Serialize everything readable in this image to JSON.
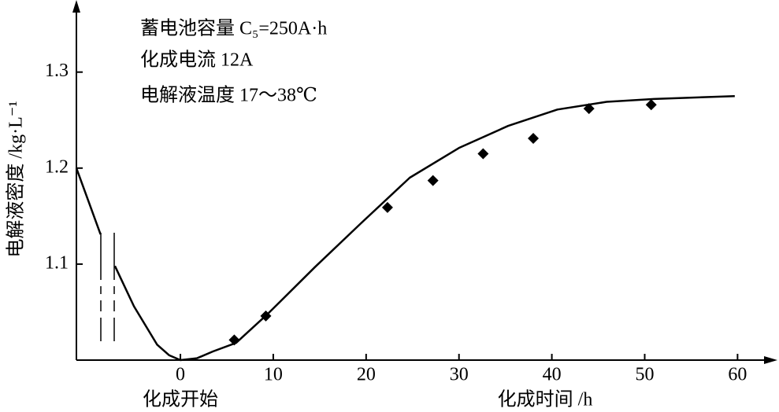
{
  "chart_data": {
    "type": "line",
    "annotations": [
      "蓄电池容量 C₅=250A·h",
      "化成电流 12A",
      "电解液温度 17～38℃"
    ],
    "start_label": "化成开始",
    "xlabel": "化成时间 /h",
    "ylabel": "电解液密度 /kg·L⁻¹",
    "xlim": [
      -11.2,
      63.7
    ],
    "ylim": [
      1.0,
      1.371
    ],
    "xticks": [
      0,
      10,
      20,
      30,
      40,
      50,
      60
    ],
    "yticks": [
      1.1,
      1.2,
      1.3
    ],
    "series": [
      {
        "color": "#000000",
        "marker": "none",
        "x": [
          -11.2,
          -8.6,
          -8.0,
          -7.05,
          -5.0,
          -2.5,
          -1.2,
          0,
          1.8,
          3.5,
          6.0,
          9.5,
          14.5,
          19.5,
          24.7,
          30.0,
          35.3,
          40.6,
          45.9,
          51.0,
          59.7
        ],
        "values": [
          1.2,
          1.131,
          null,
          1.098,
          1.056,
          1.016,
          1.005,
          1.0,
          1.002,
          1.009,
          1.018,
          1.049,
          1.097,
          1.143,
          1.19,
          1.221,
          1.244,
          1.261,
          1.269,
          1.272,
          1.275
        ]
      },
      {
        "color": "#000000",
        "marker": "diamond",
        "x": [
          5.8,
          9.2,
          22.3,
          27.2,
          32.6,
          38.0,
          44.0,
          50.7
        ],
        "values": [
          1.021,
          1.046,
          1.159,
          1.187,
          1.215,
          1.231,
          1.262,
          1.266
        ]
      }
    ]
  }
}
